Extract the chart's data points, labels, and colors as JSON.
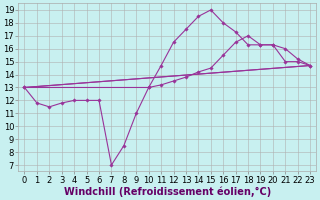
{
  "xlabel": "Windchill (Refroidissement éolien,°C)",
  "bg_color": "#c8f0f0",
  "grid_color": "#b0b0b0",
  "line_color": "#993399",
  "xlim": [
    -0.5,
    23.5
  ],
  "ylim": [
    6.5,
    19.5
  ],
  "xticks": [
    0,
    1,
    2,
    3,
    4,
    5,
    6,
    7,
    8,
    9,
    10,
    11,
    12,
    13,
    14,
    15,
    16,
    17,
    18,
    19,
    20,
    21,
    22,
    23
  ],
  "yticks": [
    7,
    8,
    9,
    10,
    11,
    12,
    13,
    14,
    15,
    16,
    17,
    18,
    19
  ],
  "line1_x": [
    0,
    1,
    2,
    3,
    4,
    5,
    6,
    7,
    8,
    9,
    10,
    11,
    12,
    13,
    14,
    15,
    16,
    17,
    18,
    19,
    20,
    21,
    22,
    23
  ],
  "line1_y": [
    13,
    11.8,
    11.5,
    11.8,
    12.0,
    12.0,
    12.0,
    7.0,
    8.5,
    11.0,
    13.0,
    14.7,
    16.5,
    17.5,
    18.5,
    19.0,
    18.0,
    17.3,
    16.3,
    16.3,
    16.3,
    15.0,
    15.0,
    14.7
  ],
  "line2_x": [
    0,
    23
  ],
  "line2_y": [
    13,
    14.7
  ],
  "line3_x": [
    0,
    23
  ],
  "line3_y": [
    13,
    14.7
  ],
  "line4_x": [
    0,
    10,
    11,
    12,
    13,
    14,
    15,
    16,
    17,
    18,
    19,
    20,
    21,
    22,
    23
  ],
  "line4_y": [
    13,
    13.0,
    13.2,
    13.5,
    13.8,
    14.2,
    14.5,
    15.5,
    16.5,
    17.0,
    16.3,
    16.3,
    16.0,
    15.2,
    14.7
  ],
  "tick_fontsize": 6,
  "xlabel_fontsize": 7
}
